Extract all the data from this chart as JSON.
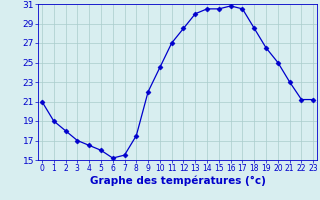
{
  "hours": [
    0,
    1,
    2,
    3,
    4,
    5,
    6,
    7,
    8,
    9,
    10,
    11,
    12,
    13,
    14,
    15,
    16,
    17,
    18,
    19,
    20,
    21,
    22,
    23
  ],
  "temps": [
    21,
    19,
    18,
    17,
    16.5,
    16,
    15.2,
    15.5,
    17.5,
    22,
    24.5,
    27,
    28.5,
    30,
    30.5,
    30.5,
    30.8,
    30.5,
    28.5,
    26.5,
    25,
    23,
    21.2,
    21.2
  ],
  "xlabel": "Graphe des températures (°c)",
  "ylim": [
    15,
    31
  ],
  "yticks": [
    15,
    17,
    19,
    21,
    23,
    25,
    27,
    29,
    31
  ],
  "xticks": [
    0,
    1,
    2,
    3,
    4,
    5,
    6,
    7,
    8,
    9,
    10,
    11,
    12,
    13,
    14,
    15,
    16,
    17,
    18,
    19,
    20,
    21,
    22,
    23
  ],
  "line_color": "#0000cc",
  "marker": "D",
  "marker_size": 2.5,
  "bg_color": "#d8eef0",
  "grid_color": "#aacccc",
  "axis_label_color": "#0000cc",
  "tick_color": "#0000cc",
  "xlabel_fontsize": 7.5,
  "ytick_fontsize": 6.5,
  "xtick_fontsize": 5.5
}
